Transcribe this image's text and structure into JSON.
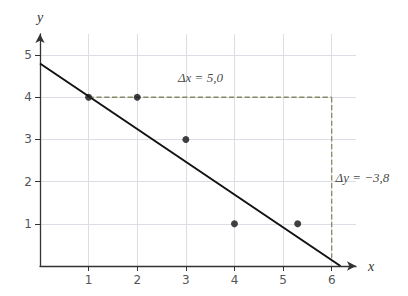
{
  "chart_data": {
    "type": "scatter",
    "xlabel": "x",
    "ylabel": "y",
    "xlim": [
      0,
      6.5
    ],
    "ylim": [
      0,
      5.5
    ],
    "xticks": [
      1,
      2,
      3,
      4,
      5,
      6
    ],
    "yticks": [
      1,
      2,
      3,
      4,
      5
    ],
    "grid": true,
    "series": [
      {
        "type": "scatter",
        "x": [
          1,
          2,
          3,
          4,
          5.3
        ],
        "values": [
          4,
          4,
          3,
          1,
          1
        ],
        "color": "#111111",
        "marker": "circle"
      },
      {
        "type": "line",
        "x": [
          0,
          6.18
        ],
        "values": [
          4.8,
          0.0
        ],
        "color": "#111111",
        "line_style": "solid"
      },
      {
        "type": "line",
        "x": [
          1,
          6
        ],
        "values": [
          4,
          4
        ],
        "color": "#888866",
        "line_style": "dashed"
      },
      {
        "type": "line",
        "x": [
          6,
          6
        ],
        "values": [
          4,
          0.19
        ],
        "color": "#888866",
        "line_style": "dashed"
      }
    ],
    "annotations": [
      {
        "text": "Δx = 5,0",
        "x": 3.3,
        "y": 4.32
      },
      {
        "text": "Δy = −3,8",
        "x": 6.08,
        "y": 2.1
      }
    ]
  }
}
